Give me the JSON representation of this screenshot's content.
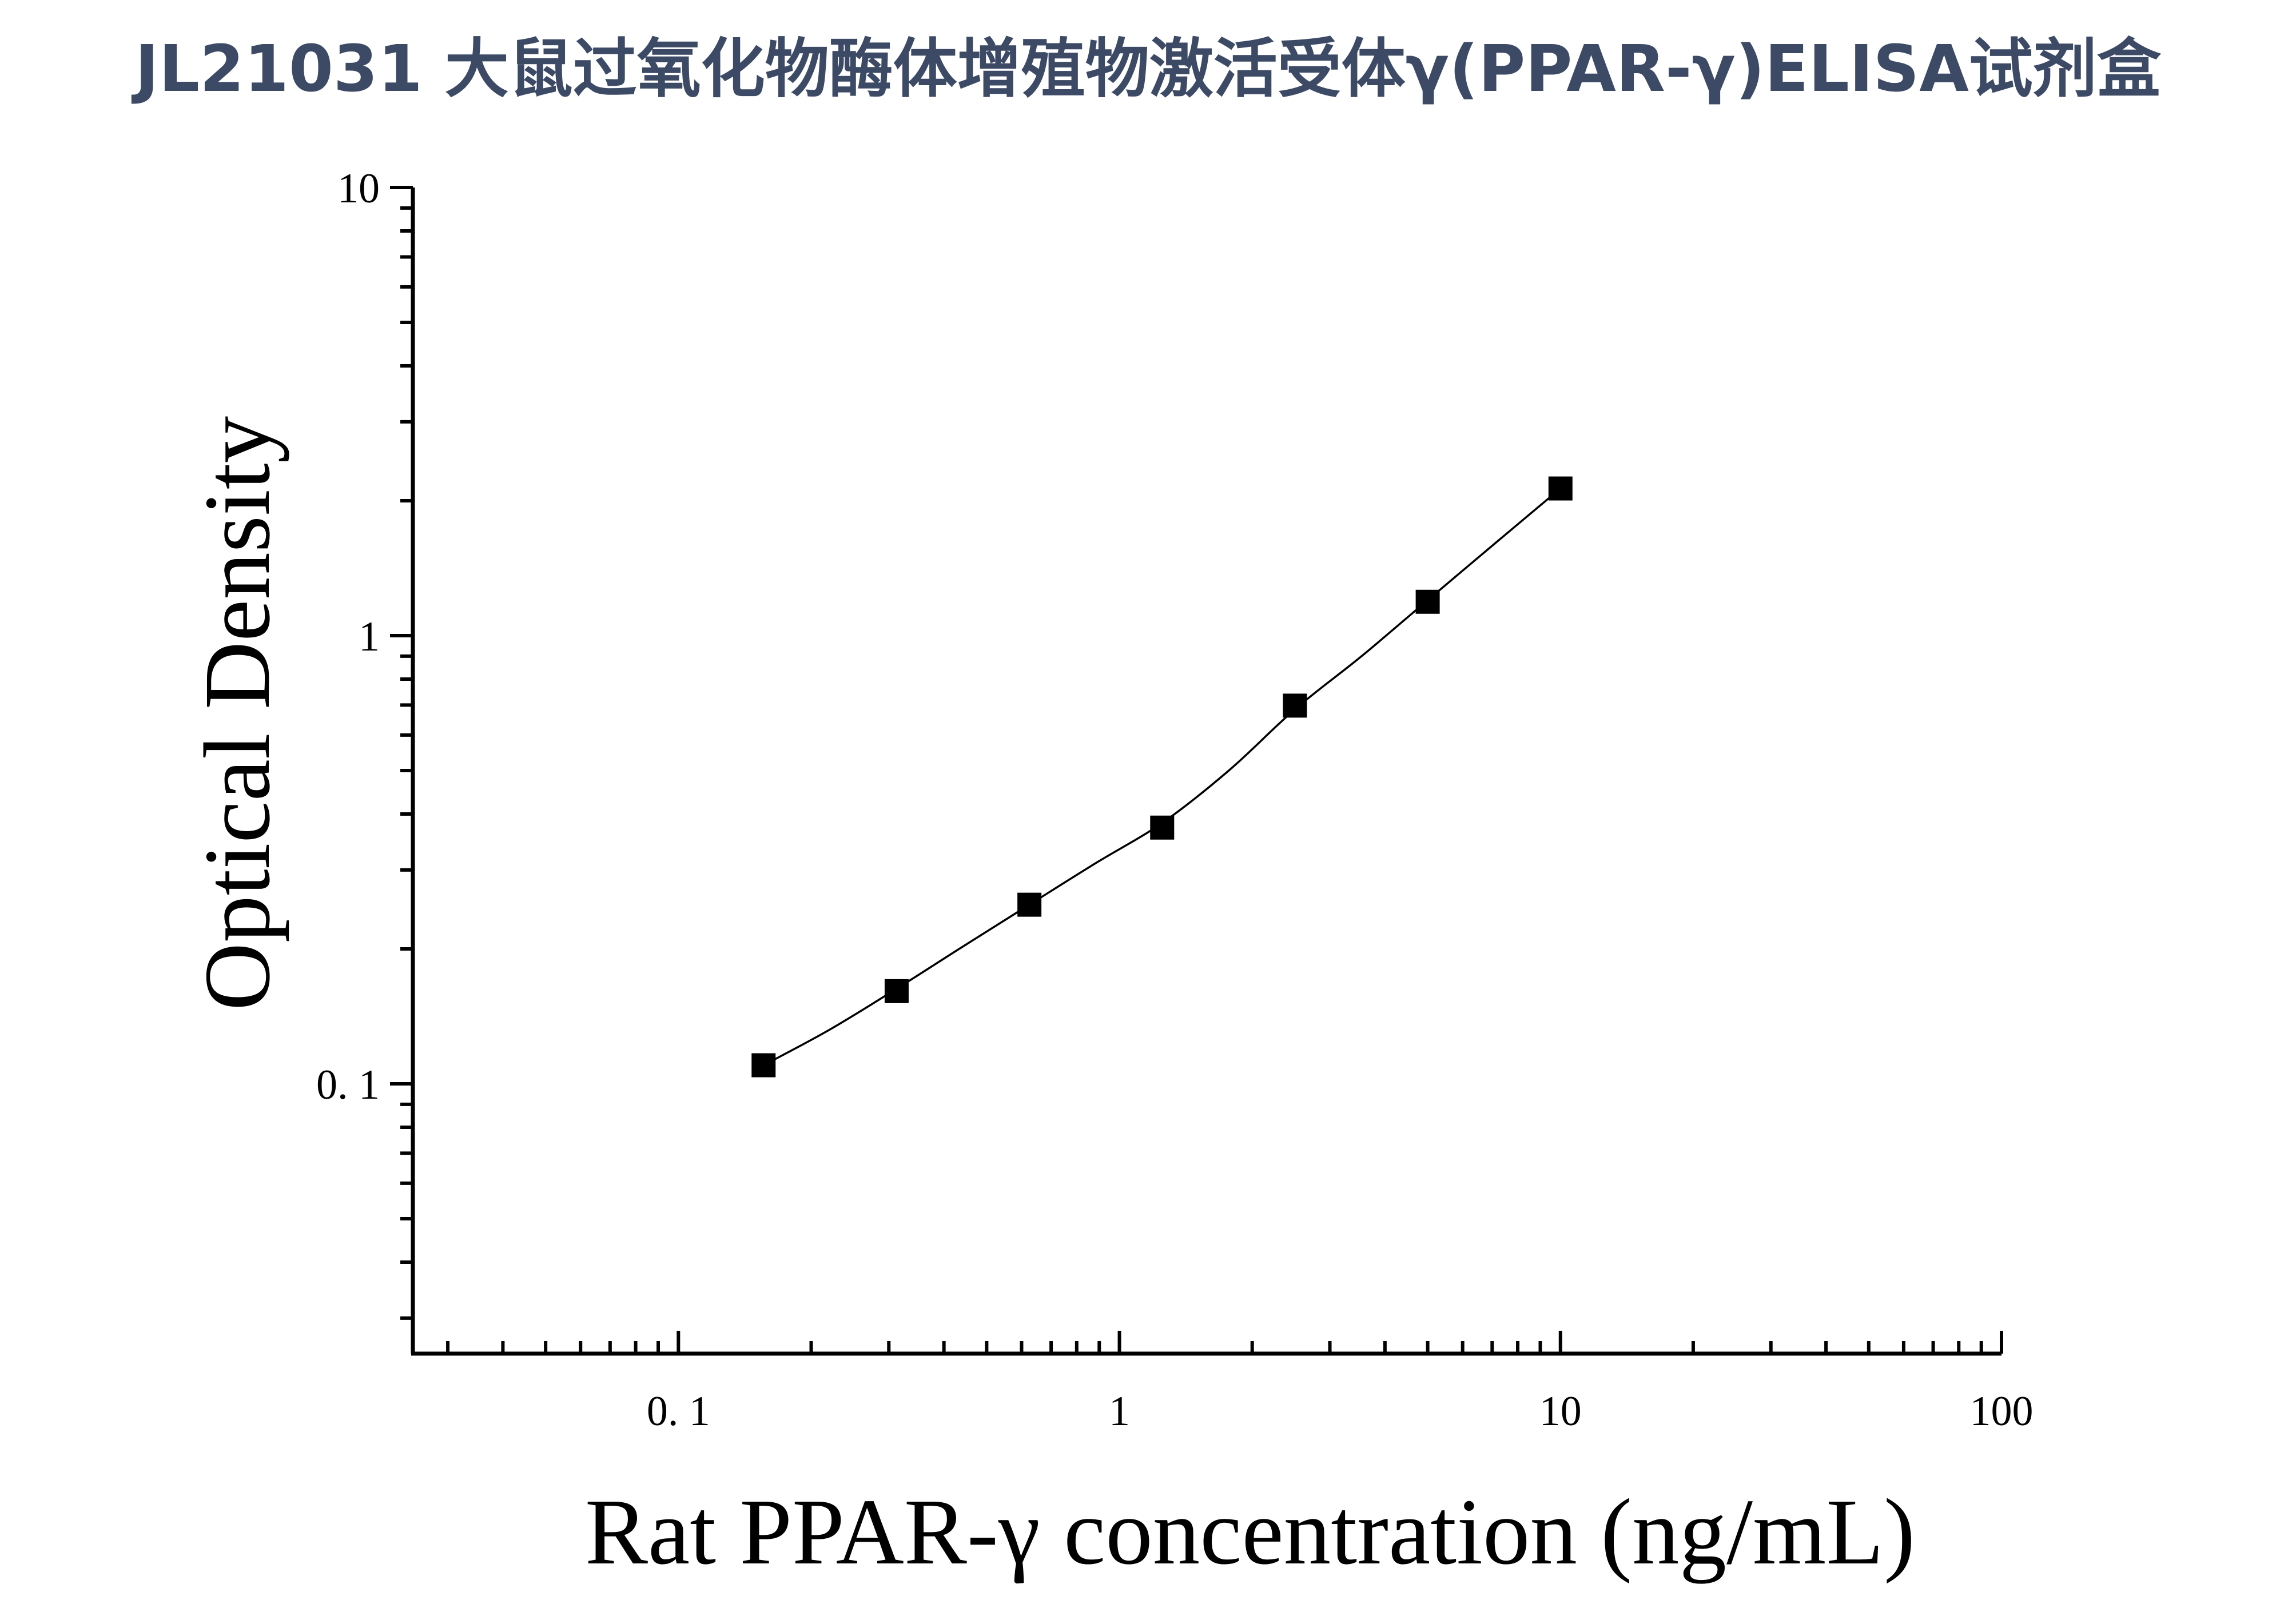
{
  "page": {
    "title": "JL21031 大鼠过氧化物酶体增殖物激活受体γ(PPAR-γ)ELISA试剂盒"
  },
  "chart_data": {
    "type": "scatter",
    "title": "JL21031 大鼠过氧化物酶体增殖物激活受体γ(PPAR-γ)ELISA试剂盒",
    "xlabel": "Rat PPAR-γ concentration (ng/mL)",
    "ylabel": "Optical Density",
    "x_scale": "log",
    "y_scale": "log",
    "xlim": [
      0.025,
      100
    ],
    "ylim": [
      0.025,
      10
    ],
    "x_ticks": [
      {
        "value": 0.1,
        "label": "0. 1"
      },
      {
        "value": 1,
        "label": "1"
      },
      {
        "value": 10,
        "label": "10"
      },
      {
        "value": 100,
        "label": "100"
      }
    ],
    "y_ticks": [
      {
        "value": 0.1,
        "label": "0. 1"
      },
      {
        "value": 1,
        "label": "1"
      },
      {
        "value": 10,
        "label": "10"
      }
    ],
    "grid": false,
    "legend": "none",
    "series": [
      {
        "marker": "square",
        "color": "#000000",
        "x": [
          0.156,
          0.3125,
          0.625,
          1.25,
          2.5,
          5,
          10
        ],
        "y": [
          0.11,
          0.161,
          0.251,
          0.373,
          0.698,
          1.19,
          2.13
        ]
      }
    ],
    "fit_curve": {
      "style": "thin-line",
      "color": "#000000",
      "x": [
        0.156,
        0.22,
        0.3125,
        0.44,
        0.625,
        0.88,
        1.25,
        1.77,
        2.5,
        3.54,
        5,
        7.07,
        10
      ],
      "y": [
        0.11,
        0.132,
        0.163,
        0.202,
        0.251,
        0.31,
        0.382,
        0.5,
        0.685,
        0.9,
        1.2,
        1.6,
        2.13
      ]
    }
  }
}
